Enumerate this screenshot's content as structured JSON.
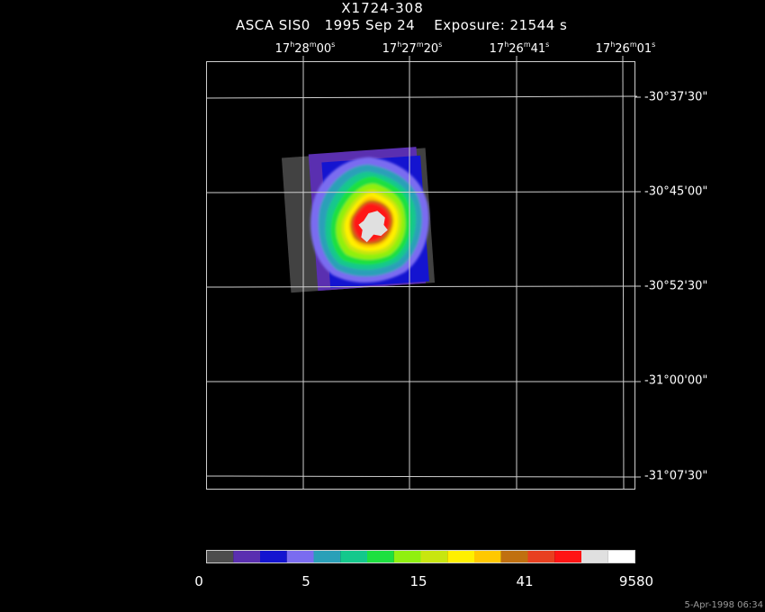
{
  "header": {
    "title": "X1724-308",
    "instrument": "ASCA SIS0",
    "date": "1995 Sep 24",
    "exposure": "Exposure: 21544 s"
  },
  "ra_labels": [
    {
      "h": "17",
      "m": "28",
      "s": "00"
    },
    {
      "h": "17",
      "m": "27",
      "s": "20"
    },
    {
      "h": "17",
      "m": "26",
      "s": "41"
    },
    {
      "h": "17",
      "m": "26",
      "s": "01"
    }
  ],
  "dec_labels": [
    "-30°37'30\"",
    "-30°45'00\"",
    "-30°52'30\"",
    "-31°00'00\"",
    "-31°07'30\""
  ],
  "colorbar": {
    "colors": [
      "#4d4d4d",
      "#5a2fb0",
      "#1414d0",
      "#7a6cf0",
      "#2aa0b8",
      "#14c88c",
      "#1ee040",
      "#90f010",
      "#c8e610",
      "#fff000",
      "#ffc800",
      "#c07010",
      "#e84020",
      "#ff1414",
      "#e0e0e0",
      "#ffffff"
    ],
    "tick_labels": [
      "0",
      "5",
      "15",
      "41",
      "9580"
    ]
  },
  "footer": "5-Apr-1998 06:34"
}
